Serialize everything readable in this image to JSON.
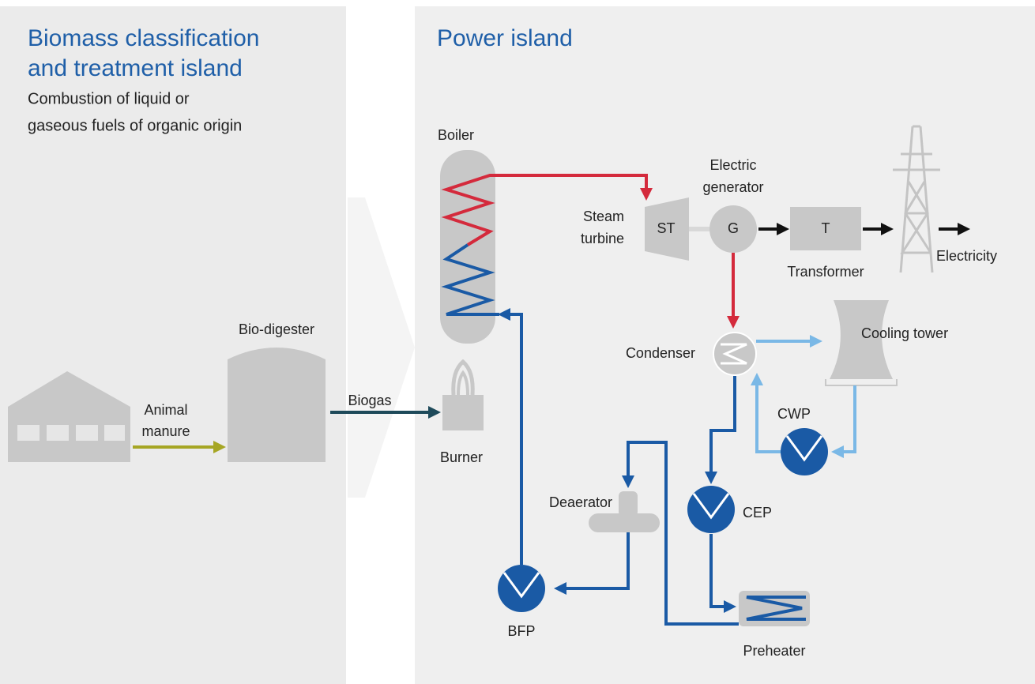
{
  "left_panel": {
    "title": [
      "Biomass classification",
      "and treatment island"
    ],
    "subtitle": [
      "Combustion of liquid or",
      "gaseous fuels of organic origin"
    ]
  },
  "right_panel": {
    "title": "Power island"
  },
  "nodes": {
    "barn_input": [
      "Animal",
      "manure"
    ],
    "digester": "Bio-digester",
    "biogas": "Biogas",
    "burner": "Burner",
    "boiler": "Boiler",
    "steam_turbine": [
      "Steam",
      "turbine"
    ],
    "turbine_code": "ST",
    "generator": [
      "Electric",
      "generator"
    ],
    "generator_code": "G",
    "transformer_code": "T",
    "transformer": "Transformer",
    "output": "Electricity",
    "condenser": "Condenser",
    "cooling_tower": "Cooling tower",
    "cwp": "CWP",
    "cep": "CEP",
    "deaerator": "Deaerator",
    "bfp": "BFP",
    "preheater": "Preheater"
  }
}
